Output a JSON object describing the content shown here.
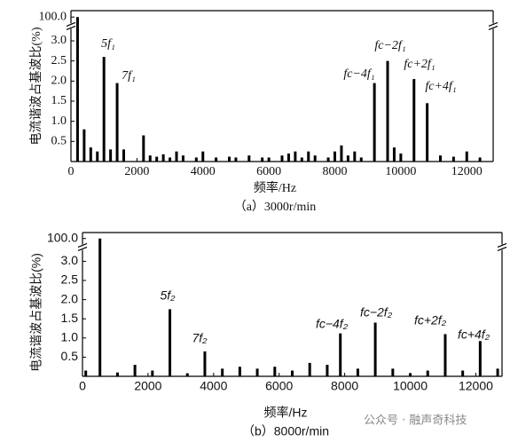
{
  "chart_data": [
    {
      "type": "bar",
      "color": "#000000",
      "y_label": "电流谐波占基波比(%)",
      "x_label": "频率/Hz",
      "caption": "（a）3000r/min",
      "x": [
        200,
        400,
        600,
        800,
        1000,
        1200,
        1400,
        1600,
        2200,
        2400,
        2600,
        2800,
        3000,
        3200,
        3400,
        3800,
        4000,
        4400,
        4800,
        5000,
        5400,
        5800,
        6000,
        6400,
        6600,
        6800,
        7000,
        7200,
        7400,
        7800,
        8000,
        8200,
        8400,
        8600,
        8800,
        9200,
        9600,
        9800,
        10000,
        10400,
        10800,
        11200,
        11600,
        12000,
        12400
      ],
      "values": [
        100,
        0.8,
        0.35,
        0.25,
        2.6,
        0.3,
        1.95,
        0.3,
        0.65,
        0.15,
        0.12,
        0.18,
        0.1,
        0.25,
        0.15,
        0.1,
        0.25,
        0.1,
        0.12,
        0.1,
        0.15,
        0.1,
        0.1,
        0.15,
        0.2,
        0.25,
        0.1,
        0.25,
        0.15,
        0.1,
        0.25,
        0.4,
        0.15,
        0.25,
        0.1,
        1.95,
        2.5,
        0.35,
        0.2,
        2.05,
        1.45,
        0.15,
        0.12,
        0.25,
        0.1
      ],
      "xlim": [
        0,
        12800
      ],
      "xticks": [
        0,
        2000,
        4000,
        6000,
        8000,
        10000,
        12000
      ],
      "ylim": [
        0,
        100.3
      ],
      "ybreak": [
        3.3,
        99.7
      ],
      "yticks": [
        0.5,
        {
          "value": 1,
          "label": "1.0"
        },
        1.5,
        {
          "value": 2,
          "label": "2.0"
        },
        2.5,
        {
          "value": 3,
          "label": "3.0"
        },
        {
          "value": 100,
          "label": "100.0"
        }
      ],
      "annotations": [
        "5f₁",
        "7f₁",
        "fc−4f₁",
        "fc−2f₁",
        "fc+2f₁",
        "fc+4f₁"
      ]
    },
    {
      "type": "bar",
      "color": "#000000",
      "y_label": "电流谐波占基波比(%)",
      "x_label": "频率/Hz",
      "caption": "（b）8000r/min",
      "x": [
        100,
        533,
        1067,
        1600,
        2133,
        2667,
        3200,
        3733,
        4267,
        4800,
        5333,
        5867,
        6400,
        6933,
        7467,
        7867,
        8400,
        8933,
        9467,
        10000,
        10533,
        11067,
        11600,
        12133,
        12667
      ],
      "values": [
        0.15,
        100,
        0.1,
        0.3,
        0.15,
        1.75,
        0.08,
        0.65,
        0.2,
        0.25,
        0.2,
        0.25,
        0.15,
        0.35,
        0.3,
        1.12,
        0.2,
        1.4,
        0.2,
        0.08,
        0.15,
        1.1,
        0.15,
        0.92,
        0.2
      ],
      "xlim": [
        0,
        12800
      ],
      "xticks": [
        0,
        2000,
        4000,
        6000,
        8000,
        10000,
        12000
      ],
      "ylim": [
        0,
        100.3
      ],
      "ybreak": [
        3.3,
        99.7
      ],
      "yticks": [
        0.5,
        {
          "value": 1,
          "label": "1.0"
        },
        1.5,
        {
          "value": 2,
          "label": "2.0"
        },
        2.5,
        {
          "value": 3,
          "label": "3.0"
        },
        {
          "value": 100,
          "label": "100.0"
        }
      ],
      "annotations": [
        "5f₂",
        "7f₂",
        "fc−4f₂",
        "fc−2f₂",
        "fc+2f₂",
        "fc+4f₂"
      ]
    }
  ],
  "watermark": "公众号 · 融声奇科技"
}
